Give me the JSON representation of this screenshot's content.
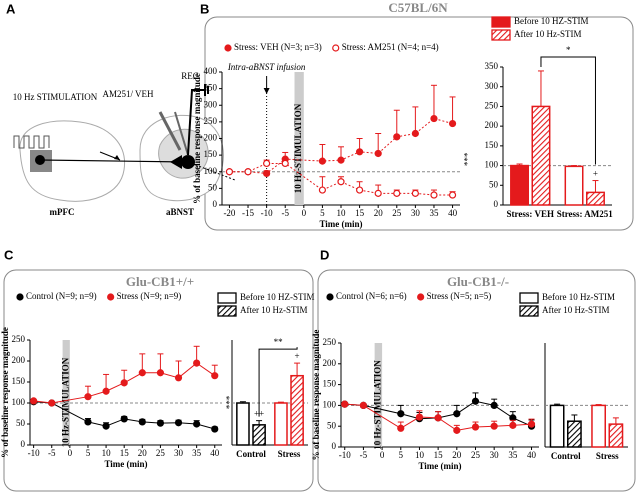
{
  "panel_labels": [
    "A",
    "B",
    "C",
    "D"
  ],
  "diagram": {
    "stimulation": "10 Hz STIMULATION",
    "drug": "AM251/ VEH",
    "recording": "REC",
    "source": "mPFC",
    "target": "aBNST"
  },
  "chart_data": [
    {
      "type": "line",
      "title": "C57BL/6N",
      "xlabel": "Time (min)",
      "ylabel": "% of baseline response magnitude",
      "x": [
        -20,
        -15,
        -10,
        -5,
        5,
        10,
        15,
        20,
        25,
        30,
        35,
        40
      ],
      "xlim": [
        -22,
        42
      ],
      "xticks": [
        -20,
        -15,
        -10,
        -5,
        0,
        5,
        10,
        15,
        20,
        25,
        30,
        35,
        40
      ],
      "ylim": [
        0,
        400
      ],
      "yticks": [
        0,
        50,
        100,
        150,
        200,
        250,
        300,
        350,
        400
      ],
      "reference": 100,
      "stim_x": [
        -2.5,
        0
      ],
      "stim_label": "10 Hz-STIMULATION",
      "infusion": {
        "x": -10,
        "label": "Intra-aBNST infusion"
      },
      "significance": "***",
      "line_style": "dotted",
      "series": [
        {
          "name": "Stress: VEH (N=3; n=3)",
          "color": "#e41a1c",
          "marker": "filled",
          "values": [
            100,
            100,
            95,
            138,
            132,
            135,
            160,
            155,
            205,
            215,
            260,
            245
          ],
          "errors": [
            3,
            3,
            8,
            20,
            50,
            40,
            40,
            60,
            80,
            80,
            100,
            80
          ]
        },
        {
          "name": "Stress: AM251 (N=4; n=4)",
          "color": "#e41a1c",
          "marker": "open",
          "values": [
            100,
            100,
            125,
            125,
            45,
            70,
            45,
            35,
            35,
            35,
            30,
            30
          ],
          "errors": [
            3,
            3,
            10,
            15,
            40,
            15,
            25,
            25,
            10,
            10,
            15,
            10
          ]
        }
      ]
    },
    {
      "type": "bar",
      "categories": [
        "Stress: VEH",
        "Stress: AM251"
      ],
      "ylim": [
        0,
        350
      ],
      "yticks": [
        0,
        50,
        100,
        150,
        200,
        250,
        300,
        350
      ],
      "reference": 100,
      "significance": "*",
      "series": [
        {
          "name": "Before 10 HZ-STIM",
          "colors": [
            "#e41a1c",
            "#e41a1c"
          ],
          "filled": [
            true,
            false
          ],
          "hatch": false,
          "values": [
            100,
            98
          ],
          "errors": [
            4,
            2
          ]
        },
        {
          "name": "After 10 Hz-STIM",
          "colors": [
            "#e41a1c",
            "#e41a1c"
          ],
          "filled": [
            false,
            false
          ],
          "hatch": true,
          "values": [
            250,
            32
          ],
          "errors": [
            90,
            30
          ],
          "notes": [
            null,
            "+"
          ]
        }
      ]
    },
    {
      "type": "line",
      "title": "Glu-CB1+/+",
      "xlabel": "Time (min)",
      "ylabel": "% of baseline response magnitude",
      "x": [
        -10,
        -5,
        5,
        10,
        15,
        20,
        25,
        30,
        35,
        40
      ],
      "xlim": [
        -11,
        42
      ],
      "xticks": [
        -10,
        -5,
        0,
        5,
        10,
        15,
        20,
        25,
        30,
        35,
        40
      ],
      "ylim": [
        0,
        250
      ],
      "yticks": [
        0,
        50,
        100,
        150,
        200,
        250
      ],
      "reference": 100,
      "stim_x": [
        -2,
        0
      ],
      "stim_label": "10 Hz-STIMULATION",
      "significance": "***",
      "series": [
        {
          "name": "Control (N=9; n=9)",
          "color": "#000000",
          "marker": "filled",
          "values": [
            103,
            100,
            55,
            45,
            62,
            55,
            52,
            53,
            50,
            38
          ],
          "errors": [
            3,
            3,
            8,
            8,
            6,
            6,
            6,
            6,
            8,
            5
          ]
        },
        {
          "name": "Stress (N=9; n=9)",
          "color": "#e41a1c",
          "marker": "filled",
          "values": [
            105,
            100,
            115,
            128,
            148,
            172,
            172,
            160,
            195,
            165
          ],
          "errors": [
            3,
            3,
            25,
            40,
            30,
            45,
            45,
            40,
            40,
            25
          ]
        }
      ]
    },
    {
      "type": "bar",
      "categories": [
        "Control",
        "Stress"
      ],
      "ylim": [
        0,
        250
      ],
      "reference": 100,
      "significance": "**",
      "series": [
        {
          "name": "Before 10 HZ-STIM",
          "colors": [
            "#000000",
            "#e41a1c"
          ],
          "filled": [
            false,
            false
          ],
          "hatch": false,
          "values": [
            100,
            100
          ],
          "errors": [
            3,
            2
          ]
        },
        {
          "name": "After 10 Hz-STIM",
          "colors": [
            "#000000",
            "#e41a1c"
          ],
          "filled": [
            false,
            false
          ],
          "hatch": true,
          "values": [
            48,
            165
          ],
          "errors": [
            10,
            30
          ],
          "notes": [
            "++",
            "+"
          ]
        }
      ]
    },
    {
      "type": "line",
      "title": "Glu-CB1-/-",
      "xlabel": "Time (min)",
      "ylabel": "% of baseline response magnitude",
      "x": [
        -10,
        -5,
        5,
        10,
        15,
        20,
        25,
        30,
        35,
        40
      ],
      "xlim": [
        -11,
        42
      ],
      "xticks": [
        -10,
        -5,
        0,
        5,
        10,
        15,
        20,
        25,
        30,
        35,
        40
      ],
      "ylim": [
        0,
        250
      ],
      "yticks": [
        0,
        50,
        100,
        150,
        200,
        250
      ],
      "reference": 100,
      "stim_x": [
        -2,
        0
      ],
      "stim_label": "10 Hz-STIMULATION",
      "series": [
        {
          "name": "Control (N=6; n=6)",
          "color": "#000000",
          "marker": "filled",
          "values": [
            103,
            100,
            80,
            68,
            70,
            80,
            110,
            100,
            70,
            50
          ],
          "errors": [
            3,
            3,
            20,
            15,
            15,
            20,
            20,
            15,
            15,
            15
          ]
        },
        {
          "name": "Stress (N=5; n=5)",
          "color": "#e41a1c",
          "marker": "filled",
          "values": [
            103,
            100,
            45,
            72,
            70,
            40,
            48,
            50,
            52,
            55
          ],
          "errors": [
            3,
            3,
            15,
            15,
            15,
            12,
            12,
            12,
            12,
            12
          ]
        }
      ]
    },
    {
      "type": "bar",
      "categories": [
        "Control",
        "Stress"
      ],
      "ylim": [
        0,
        250
      ],
      "reference": 100,
      "series": [
        {
          "name": "Before 10 Hz-STIM",
          "colors": [
            "#000000",
            "#e41a1c"
          ],
          "filled": [
            false,
            false
          ],
          "hatch": false,
          "values": [
            100,
            100
          ],
          "errors": [
            3,
            2
          ]
        },
        {
          "name": "After 10 Hz-STIM",
          "colors": [
            "#000000",
            "#e41a1c"
          ],
          "filled": [
            false,
            false
          ],
          "hatch": true,
          "values": [
            62,
            55
          ],
          "errors": [
            15,
            15
          ]
        }
      ]
    }
  ]
}
